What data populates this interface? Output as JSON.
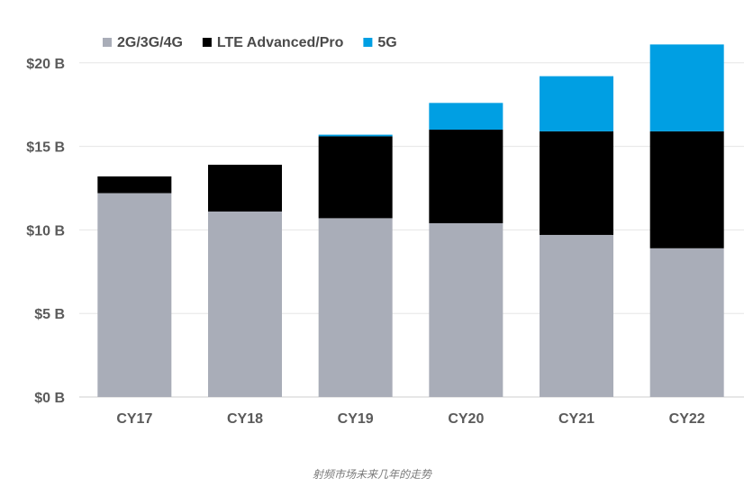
{
  "chart_data": {
    "type": "bar",
    "stacked": true,
    "categories": [
      "CY17",
      "CY18",
      "CY19",
      "CY20",
      "CY21",
      "CY22"
    ],
    "series": [
      {
        "name": "2G/3G/4G",
        "color": "#a9adb8",
        "values": [
          12.2,
          11.1,
          10.7,
          10.4,
          9.7,
          8.9
        ]
      },
      {
        "name": "LTE Advanced/Pro",
        "color": "#000000",
        "values": [
          1.0,
          2.8,
          4.9,
          5.6,
          6.2,
          7.0
        ]
      },
      {
        "name": "5G",
        "color": "#009fe3",
        "values": [
          0,
          0,
          0.1,
          1.6,
          3.3,
          5.2
        ]
      }
    ],
    "ylim": [
      0,
      21
    ],
    "yticks": [
      0,
      5,
      10,
      15,
      20
    ],
    "ytick_labels": [
      "$0 B",
      "$5 B",
      "$10 B",
      "$15 B",
      "$20 B"
    ],
    "grid": true,
    "legend_position": "top-left"
  },
  "caption": "射频市场未来几年的走势"
}
